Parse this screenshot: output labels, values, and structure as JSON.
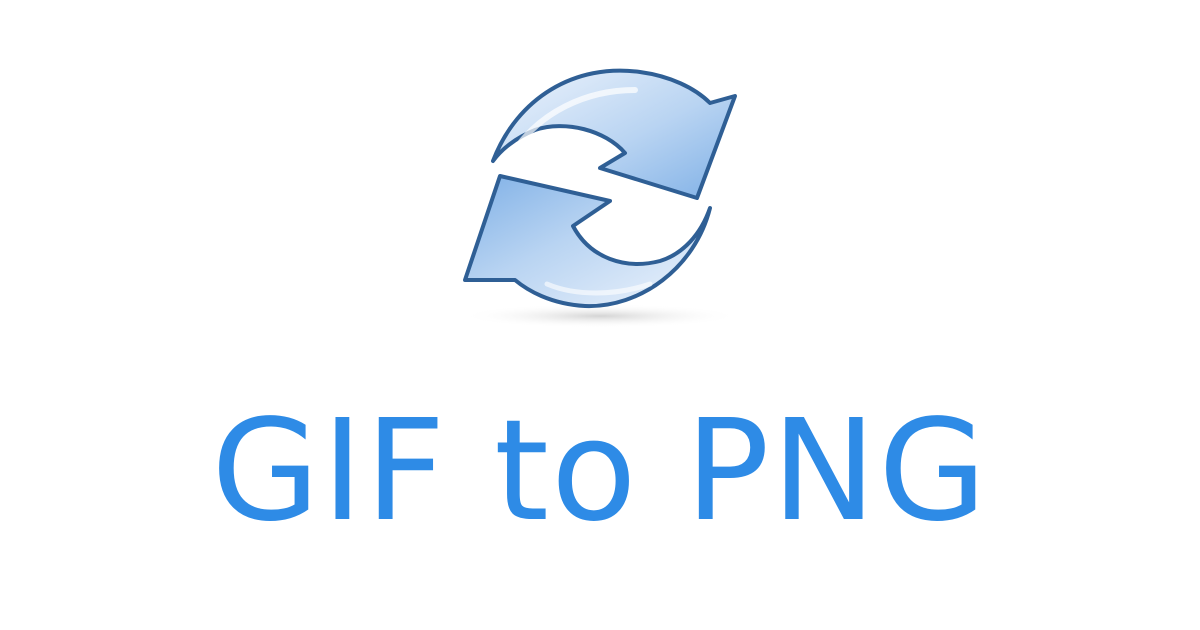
{
  "title": "GIF to PNG",
  "icon": "refresh-convert-icon",
  "colors": {
    "title": "#2e8be6",
    "arrow_fill_light": "#e3eefb",
    "arrow_fill_dark": "#8cb9ea",
    "arrow_stroke": "#2f5f95",
    "background": "#ffffff"
  }
}
